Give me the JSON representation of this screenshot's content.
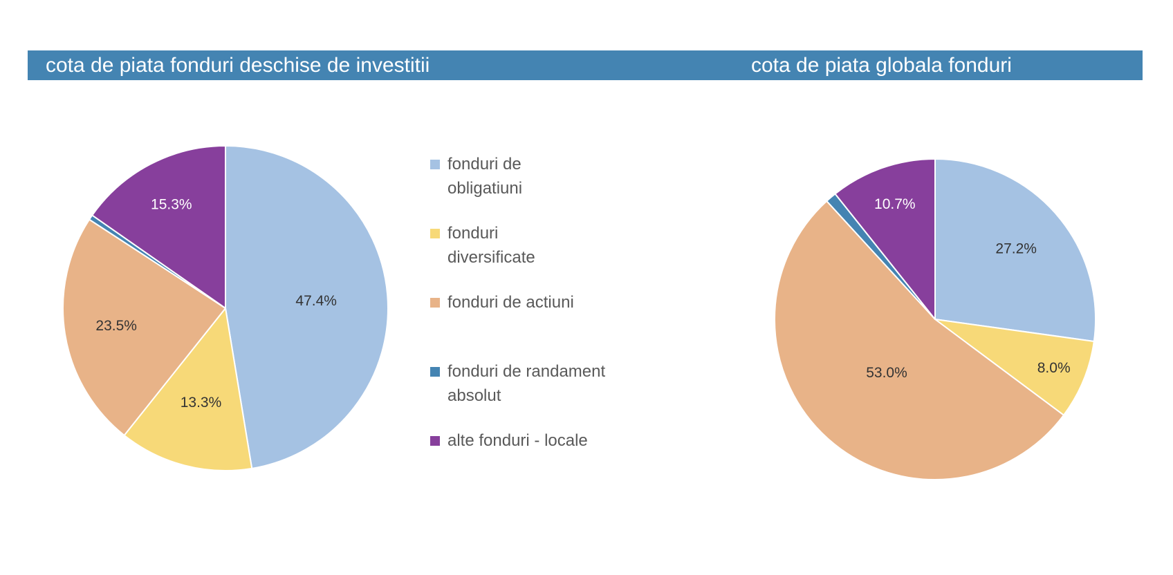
{
  "colors": {
    "header_bg": "#4484b2",
    "title_text": "#ffffff",
    "label_dark": "#333333",
    "label_light": "#ffffff",
    "legend_text": "#595959"
  },
  "legend": [
    {
      "label": "fonduri de obligatiuni",
      "color": "#a5c2e3",
      "icon": "square-swatch"
    },
    {
      "label": "fonduri diversificate",
      "color": "#f7d978",
      "icon": "square-swatch"
    },
    {
      "label": "fonduri de actiuni",
      "color": "#e8b388",
      "icon": "square-swatch"
    },
    {
      "label": "fonduri de randament absolut",
      "color": "#4484b2",
      "icon": "square-swatch"
    },
    {
      "label": "alte fonduri - locale",
      "color": "#873f9c",
      "icon": "square-swatch"
    }
  ],
  "chart_data": [
    {
      "type": "pie",
      "title": "cota de piata fonduri deschise de investitii",
      "start_angle_deg": 0,
      "direction": "clockwise",
      "legend_position": "right",
      "slices": [
        {
          "name": "fonduri de obligatiuni",
          "value": 47.4,
          "label": "47.4%",
          "color": "#a5c2e3",
          "label_color": "#333333"
        },
        {
          "name": "fonduri diversificate",
          "value": 13.3,
          "label": "13.3%",
          "color": "#f7d978",
          "label_color": "#333333"
        },
        {
          "name": "fonduri de actiuni",
          "value": 23.5,
          "label": "23.5%",
          "color": "#e8b388",
          "label_color": "#333333"
        },
        {
          "name": "fonduri de randament absolut",
          "value": 0.5,
          "label": "",
          "color": "#4484b2",
          "label_color": "#333333"
        },
        {
          "name": "alte fonduri - locale",
          "value": 15.3,
          "label": "15.3%",
          "color": "#873f9c",
          "label_color": "#ffffff"
        }
      ]
    },
    {
      "type": "pie",
      "title": "cota de piata globala fonduri",
      "start_angle_deg": 0,
      "direction": "clockwise",
      "slices": [
        {
          "name": "fonduri de obligatiuni",
          "value": 27.2,
          "label": "27.2%",
          "color": "#a5c2e3",
          "label_color": "#333333"
        },
        {
          "name": "fonduri diversificate",
          "value": 8.0,
          "label": "8.0%",
          "color": "#f7d978",
          "label_color": "#333333"
        },
        {
          "name": "fonduri de actiuni",
          "value": 53.0,
          "label": "53.0%",
          "color": "#e8b388",
          "label_color": "#333333"
        },
        {
          "name": "fonduri de randament absolut",
          "value": 1.1,
          "label": "",
          "color": "#4484b2",
          "label_color": "#333333"
        },
        {
          "name": "alte fonduri - locale",
          "value": 10.7,
          "label": "10.7%",
          "color": "#873f9c",
          "label_color": "#ffffff"
        }
      ]
    }
  ]
}
